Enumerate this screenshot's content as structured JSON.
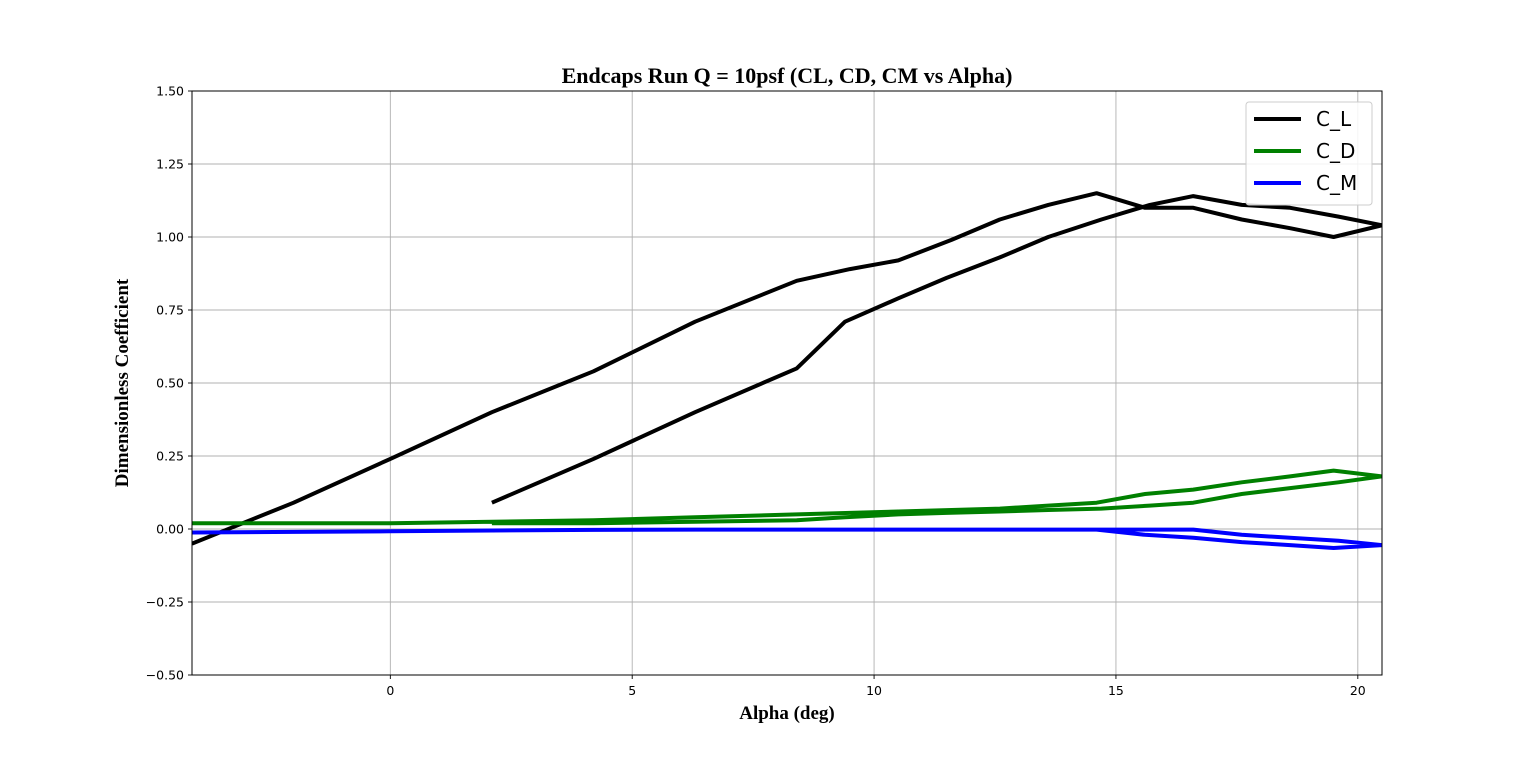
{
  "chart_data": {
    "type": "line",
    "title": "Endcaps Run Q = 10psf (CL, CD, CM vs Alpha)",
    "xlabel": "Alpha (deg)",
    "ylabel": "Dimensionless Coefficient",
    "xlim": [
      -4.1,
      20.5
    ],
    "ylim": [
      -0.5,
      1.5
    ],
    "xticks": [
      0,
      5,
      10,
      15,
      20
    ],
    "yticks": [
      -0.5,
      -0.25,
      0.0,
      0.25,
      0.5,
      0.75,
      1.0,
      1.25,
      1.5
    ],
    "xtick_labels": [
      "0",
      "5",
      "10",
      "15",
      "20"
    ],
    "ytick_labels": [
      "−0.50",
      "−0.25",
      "0.00",
      "0.25",
      "0.50",
      "0.75",
      "1.00",
      "1.25",
      "1.50"
    ],
    "grid": true,
    "legend_position": "top-right",
    "series": [
      {
        "name": "C_L",
        "color": "#000000",
        "x": [
          2.1,
          4.2,
          6.3,
          8.4,
          9.4,
          10.5,
          11.5,
          12.6,
          13.6,
          14.7,
          15.7,
          16.6,
          17.6,
          18.6,
          19.6,
          20.5,
          19.5,
          18.6,
          17.6,
          16.6,
          15.6,
          14.6,
          13.6,
          12.6,
          11.6,
          10.5,
          9.5,
          8.4,
          6.3,
          4.2,
          2.1,
          0.0,
          -2.0,
          -4.1
        ],
        "y": [
          0.09,
          0.24,
          0.4,
          0.55,
          0.71,
          0.79,
          0.86,
          0.93,
          1.0,
          1.06,
          1.11,
          1.14,
          1.11,
          1.1,
          1.07,
          1.04,
          1.0,
          1.03,
          1.06,
          1.1,
          1.1,
          1.15,
          1.11,
          1.06,
          0.99,
          0.92,
          0.89,
          0.85,
          0.71,
          0.54,
          0.4,
          0.24,
          0.09,
          -0.05
        ]
      },
      {
        "name": "C_D",
        "color": "#008000",
        "x": [
          2.1,
          4.2,
          6.3,
          8.4,
          9.4,
          10.5,
          11.5,
          12.6,
          13.6,
          14.7,
          15.7,
          16.6,
          17.6,
          18.6,
          19.6,
          20.5,
          19.5,
          18.6,
          17.6,
          16.6,
          15.6,
          14.6,
          13.6,
          12.6,
          11.6,
          10.5,
          9.5,
          8.4,
          6.3,
          4.2,
          2.1,
          0.0,
          -2.0,
          -4.1
        ],
        "y": [
          0.02,
          0.02,
          0.025,
          0.03,
          0.04,
          0.05,
          0.055,
          0.06,
          0.065,
          0.07,
          0.08,
          0.09,
          0.12,
          0.14,
          0.16,
          0.18,
          0.2,
          0.18,
          0.16,
          0.135,
          0.12,
          0.09,
          0.08,
          0.07,
          0.065,
          0.06,
          0.055,
          0.05,
          0.04,
          0.03,
          0.025,
          0.02,
          0.02,
          0.02
        ]
      },
      {
        "name": "C_M",
        "color": "#0000ff",
        "x": [
          2.1,
          4.2,
          6.3,
          8.4,
          9.4,
          10.5,
          11.5,
          12.6,
          13.6,
          14.7,
          15.7,
          16.6,
          17.6,
          18.6,
          19.6,
          20.5,
          19.5,
          18.6,
          17.6,
          16.6,
          15.6,
          14.6,
          13.6,
          12.6,
          11.6,
          10.5,
          9.5,
          8.4,
          6.3,
          4.2,
          2.1,
          0.0,
          -2.0,
          -4.1
        ],
        "y": [
          -0.005,
          -0.003,
          -0.002,
          -0.002,
          -0.002,
          -0.002,
          -0.002,
          -0.002,
          -0.002,
          -0.002,
          -0.002,
          -0.002,
          -0.02,
          -0.03,
          -0.04,
          -0.055,
          -0.065,
          -0.055,
          -0.045,
          -0.03,
          -0.02,
          -0.002,
          -0.002,
          -0.002,
          -0.002,
          -0.002,
          -0.002,
          -0.002,
          -0.002,
          -0.003,
          -0.005,
          -0.008,
          -0.01,
          -0.012
        ]
      }
    ]
  }
}
